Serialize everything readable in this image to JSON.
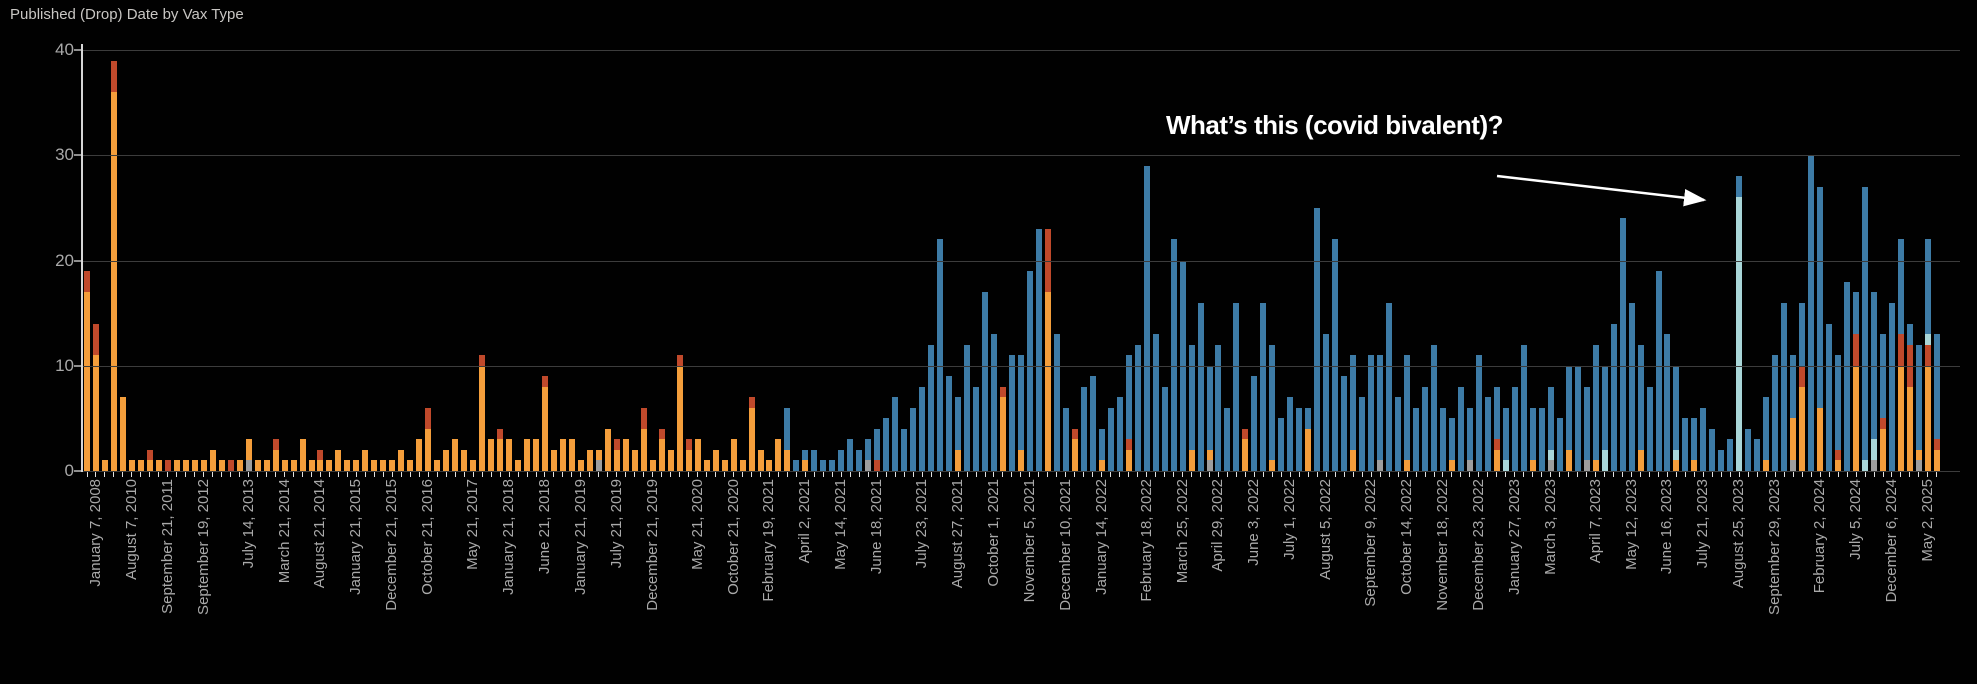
{
  "title": "Published (Drop) Date by Vax Type",
  "annotation": {
    "text": "What’s this (covid bivalent)?"
  },
  "colors": {
    "background": "#010101",
    "title_text": "#c8c6c3",
    "axis_text": "#a9a9a9",
    "gridline": "#3c3c3c",
    "axis_line": "#d6d6d6",
    "annotation_text": "#ffffff",
    "orange": "#f49e3b",
    "red_orange": "#c0492b",
    "blue": "#3d7ba6",
    "teal": "#a9d6d8",
    "gray": "#9e9e9e"
  },
  "y_axis": {
    "ticks": [
      0,
      10,
      20,
      30,
      40
    ]
  },
  "chart_data": {
    "type": "bar",
    "stacked": true,
    "title": "Published (Drop) Date by Vax Type",
    "xlabel": "",
    "ylabel": "",
    "ylim": [
      0,
      40
    ],
    "grid": true,
    "legend_position": "none",
    "stack_order": [
      "gray",
      "orange",
      "red_orange",
      "teal",
      "blue"
    ],
    "x_tick_labels": [
      "January 7, 2008",
      "August 7, 2010",
      "September 21, 2011",
      "September 19, 2012",
      "July 14, 2013",
      "March 21, 2014",
      "August 21, 2014",
      "January 21, 2015",
      "December 21, 2015",
      "October 21, 2016",
      "May 21, 2017",
      "January 21, 2018",
      "June 21, 2018",
      "January 21, 2019",
      "July 21, 2019",
      "December 21, 2019",
      "May 21, 2020",
      "October 21, 2020",
      "February 19, 2021",
      "April 2, 2021",
      "May 14, 2021",
      "June 18, 2021",
      "July 23, 2021",
      "August 27, 2021",
      "October 1, 2021",
      "November 5, 2021",
      "December 10, 2021",
      "January 14, 2022",
      "February 18, 2022",
      "March 25, 2022",
      "April 29, 2022",
      "June 3, 2022",
      "July 1, 2022",
      "August 5, 2022",
      "September 9, 2022",
      "October 14, 2022",
      "November 18, 2022",
      "December 23, 2022",
      "January 27, 2023",
      "March 3, 2023",
      "April 7, 2023",
      "May 12, 2023",
      "June 16, 2023",
      "July 21, 2023",
      "August 25, 2023",
      "September 29, 2023",
      "February 2, 2024",
      "July 5, 2024",
      "December 6, 2024",
      "May 2, 2025"
    ],
    "annotated_bar": {
      "x_label": "August 25, 2023",
      "teal_value": 26,
      "blue_value": 2
    },
    "bars": [
      [
        0,
        17,
        2,
        0,
        0
      ],
      [
        0,
        11,
        3,
        0,
        0
      ],
      [
        0,
        1,
        0,
        0,
        0
      ],
      [
        0,
        36,
        3,
        0,
        0
      ],
      [
        0,
        7,
        0,
        0,
        0
      ],
      [
        0,
        1,
        0,
        0,
        0
      ],
      [
        0,
        1,
        0,
        0,
        0
      ],
      [
        0,
        1,
        1,
        0,
        0
      ],
      [
        0,
        1,
        0,
        0,
        0
      ],
      [
        0,
        0,
        1,
        0,
        0
      ],
      [
        0,
        1,
        0,
        0,
        0
      ],
      [
        0,
        1,
        0,
        0,
        0
      ],
      [
        0,
        1,
        0,
        0,
        0
      ],
      [
        0,
        1,
        0,
        0,
        0
      ],
      [
        0,
        2,
        0,
        0,
        0
      ],
      [
        0,
        1,
        0,
        0,
        0
      ],
      [
        0,
        0,
        1,
        0,
        0
      ],
      [
        0,
        1,
        0,
        0,
        0
      ],
      [
        1,
        2,
        0,
        0,
        0
      ],
      [
        0,
        1,
        0,
        0,
        0
      ],
      [
        0,
        1,
        0,
        0,
        0
      ],
      [
        0,
        2,
        1,
        0,
        0
      ],
      [
        0,
        1,
        0,
        0,
        0
      ],
      [
        0,
        1,
        0,
        0,
        0
      ],
      [
        0,
        3,
        0,
        0,
        0
      ],
      [
        0,
        1,
        0,
        0,
        0
      ],
      [
        0,
        1,
        1,
        0,
        0
      ],
      [
        0,
        1,
        0,
        0,
        0
      ],
      [
        0,
        2,
        0,
        0,
        0
      ],
      [
        0,
        1,
        0,
        0,
        0
      ],
      [
        0,
        1,
        0,
        0,
        0
      ],
      [
        0,
        2,
        0,
        0,
        0
      ],
      [
        0,
        1,
        0,
        0,
        0
      ],
      [
        0,
        1,
        0,
        0,
        0
      ],
      [
        0,
        1,
        0,
        0,
        0
      ],
      [
        0,
        2,
        0,
        0,
        0
      ],
      [
        0,
        1,
        0,
        0,
        0
      ],
      [
        0,
        3,
        0,
        0,
        0
      ],
      [
        0,
        4,
        2,
        0,
        0
      ],
      [
        0,
        1,
        0,
        0,
        0
      ],
      [
        0,
        2,
        0,
        0,
        0
      ],
      [
        0,
        3,
        0,
        0,
        0
      ],
      [
        0,
        2,
        0,
        0,
        0
      ],
      [
        0,
        1,
        0,
        0,
        0
      ],
      [
        0,
        10,
        1,
        0,
        0
      ],
      [
        0,
        3,
        0,
        0,
        0
      ],
      [
        0,
        3,
        1,
        0,
        0
      ],
      [
        0,
        3,
        0,
        0,
        0
      ],
      [
        0,
        1,
        0,
        0,
        0
      ],
      [
        0,
        3,
        0,
        0,
        0
      ],
      [
        0,
        3,
        0,
        0,
        0
      ],
      [
        0,
        8,
        1,
        0,
        0
      ],
      [
        0,
        2,
        0,
        0,
        0
      ],
      [
        0,
        3,
        0,
        0,
        0
      ],
      [
        0,
        3,
        0,
        0,
        0
      ],
      [
        0,
        1,
        0,
        0,
        0
      ],
      [
        0,
        2,
        0,
        0,
        0
      ],
      [
        1,
        1,
        0,
        0,
        0
      ],
      [
        0,
        4,
        0,
        0,
        0
      ],
      [
        0,
        2,
        1,
        0,
        0
      ],
      [
        0,
        3,
        0,
        0,
        0
      ],
      [
        0,
        2,
        0,
        0,
        0
      ],
      [
        0,
        4,
        2,
        0,
        0
      ],
      [
        0,
        1,
        0,
        0,
        0
      ],
      [
        0,
        3,
        1,
        0,
        0
      ],
      [
        0,
        2,
        0,
        0,
        0
      ],
      [
        0,
        10,
        1,
        0,
        0
      ],
      [
        0,
        2,
        1,
        0,
        0
      ],
      [
        0,
        3,
        0,
        0,
        0
      ],
      [
        0,
        1,
        0,
        0,
        0
      ],
      [
        0,
        2,
        0,
        0,
        0
      ],
      [
        0,
        1,
        0,
        0,
        0
      ],
      [
        0,
        3,
        0,
        0,
        0
      ],
      [
        0,
        1,
        0,
        0,
        0
      ],
      [
        0,
        6,
        1,
        0,
        0
      ],
      [
        0,
        2,
        0,
        0,
        0
      ],
      [
        0,
        1,
        0,
        0,
        0
      ],
      [
        0,
        3,
        0,
        0,
        0
      ],
      [
        0,
        2,
        0,
        0,
        4
      ],
      [
        0,
        0,
        0,
        0,
        1
      ],
      [
        0,
        1,
        0,
        0,
        1
      ],
      [
        0,
        0,
        0,
        0,
        2
      ],
      [
        0,
        0,
        0,
        0,
        1
      ],
      [
        0,
        0,
        0,
        0,
        1
      ],
      [
        0,
        0,
        0,
        0,
        2
      ],
      [
        0,
        0,
        0,
        0,
        3
      ],
      [
        0,
        0,
        0,
        0,
        2
      ],
      [
        1,
        0,
        0,
        0,
        2
      ],
      [
        0,
        0,
        1,
        0,
        3
      ],
      [
        0,
        0,
        0,
        0,
        5
      ],
      [
        0,
        0,
        0,
        0,
        7
      ],
      [
        0,
        0,
        0,
        0,
        4
      ],
      [
        0,
        0,
        0,
        0,
        6
      ],
      [
        0,
        0,
        0,
        0,
        8
      ],
      [
        0,
        0,
        0,
        0,
        12
      ],
      [
        0,
        0,
        0,
        0,
        22
      ],
      [
        0,
        0,
        0,
        0,
        9
      ],
      [
        0,
        2,
        0,
        0,
        5
      ],
      [
        0,
        0,
        0,
        0,
        12
      ],
      [
        0,
        0,
        0,
        0,
        8
      ],
      [
        0,
        0,
        0,
        0,
        17
      ],
      [
        0,
        0,
        0,
        0,
        13
      ],
      [
        0,
        7,
        1,
        0,
        0
      ],
      [
        0,
        0,
        0,
        0,
        11
      ],
      [
        0,
        2,
        0,
        0,
        9
      ],
      [
        0,
        0,
        0,
        0,
        19
      ],
      [
        0,
        0,
        0,
        0,
        23
      ],
      [
        0,
        17,
        6,
        0,
        0
      ],
      [
        0,
        0,
        0,
        0,
        13
      ],
      [
        0,
        0,
        0,
        0,
        6
      ],
      [
        0,
        3,
        1,
        0,
        0
      ],
      [
        0,
        0,
        0,
        0,
        8
      ],
      [
        0,
        0,
        0,
        0,
        9
      ],
      [
        0,
        1,
        0,
        0,
        3
      ],
      [
        0,
        0,
        0,
        0,
        6
      ],
      [
        0,
        0,
        0,
        0,
        7
      ],
      [
        0,
        2,
        1,
        0,
        8
      ],
      [
        0,
        0,
        0,
        0,
        12
      ],
      [
        0,
        0,
        0,
        0,
        29
      ],
      [
        0,
        0,
        0,
        0,
        13
      ],
      [
        0,
        0,
        0,
        0,
        8
      ],
      [
        0,
        0,
        0,
        0,
        22
      ],
      [
        0,
        0,
        0,
        0,
        20
      ],
      [
        0,
        2,
        0,
        0,
        10
      ],
      [
        0,
        0,
        0,
        0,
        16
      ],
      [
        1,
        1,
        0,
        0,
        8
      ],
      [
        0,
        0,
        0,
        0,
        12
      ],
      [
        0,
        0,
        0,
        0,
        6
      ],
      [
        0,
        0,
        0,
        0,
        16
      ],
      [
        0,
        3,
        1,
        0,
        0
      ],
      [
        0,
        0,
        0,
        0,
        9
      ],
      [
        0,
        0,
        0,
        0,
        16
      ],
      [
        0,
        1,
        0,
        0,
        11
      ],
      [
        0,
        0,
        0,
        0,
        5
      ],
      [
        0,
        0,
        0,
        0,
        7
      ],
      [
        0,
        0,
        0,
        0,
        6
      ],
      [
        0,
        4,
        0,
        0,
        2
      ],
      [
        0,
        0,
        0,
        0,
        25
      ],
      [
        0,
        0,
        0,
        0,
        13
      ],
      [
        0,
        0,
        0,
        0,
        22
      ],
      [
        0,
        0,
        0,
        0,
        9
      ],
      [
        0,
        2,
        0,
        0,
        9
      ],
      [
        0,
        0,
        0,
        0,
        7
      ],
      [
        0,
        0,
        0,
        0,
        11
      ],
      [
        1,
        0,
        0,
        0,
        10
      ],
      [
        0,
        0,
        0,
        0,
        16
      ],
      [
        0,
        0,
        0,
        0,
        7
      ],
      [
        0,
        1,
        0,
        0,
        10
      ],
      [
        0,
        0,
        0,
        0,
        6
      ],
      [
        0,
        0,
        0,
        0,
        8
      ],
      [
        0,
        0,
        0,
        0,
        12
      ],
      [
        0,
        0,
        0,
        0,
        6
      ],
      [
        0,
        1,
        0,
        0,
        4
      ],
      [
        0,
        0,
        0,
        0,
        8
      ],
      [
        1,
        0,
        0,
        0,
        5
      ],
      [
        0,
        0,
        0,
        0,
        11
      ],
      [
        0,
        0,
        0,
        0,
        7
      ],
      [
        0,
        2,
        1,
        0,
        5
      ],
      [
        0,
        0,
        0,
        1,
        5
      ],
      [
        0,
        0,
        0,
        0,
        8
      ],
      [
        0,
        0,
        0,
        0,
        12
      ],
      [
        0,
        1,
        0,
        0,
        5
      ],
      [
        0,
        0,
        0,
        0,
        6
      ],
      [
        1,
        0,
        0,
        1,
        6
      ],
      [
        0,
        0,
        0,
        0,
        5
      ],
      [
        0,
        2,
        0,
        0,
        8
      ],
      [
        0,
        0,
        0,
        0,
        10
      ],
      [
        1,
        0,
        0,
        0,
        7
      ],
      [
        0,
        1,
        0,
        0,
        11
      ],
      [
        0,
        0,
        0,
        2,
        8
      ],
      [
        0,
        0,
        0,
        0,
        14
      ],
      [
        0,
        0,
        0,
        0,
        24
      ],
      [
        0,
        0,
        0,
        0,
        16
      ],
      [
        0,
        2,
        0,
        0,
        10
      ],
      [
        0,
        0,
        0,
        0,
        8
      ],
      [
        0,
        0,
        0,
        0,
        19
      ],
      [
        0,
        0,
        0,
        0,
        13
      ],
      [
        0,
        1,
        0,
        1,
        8
      ],
      [
        0,
        0,
        0,
        0,
        5
      ],
      [
        0,
        1,
        0,
        0,
        4
      ],
      [
        0,
        0,
        0,
        0,
        6
      ],
      [
        0,
        0,
        0,
        0,
        4
      ],
      [
        0,
        0,
        0,
        0,
        2
      ],
      [
        0,
        0,
        0,
        0,
        3
      ],
      [
        0,
        0,
        0,
        26,
        2
      ],
      [
        0,
        0,
        0,
        0,
        4
      ],
      [
        0,
        0,
        0,
        0,
        3
      ],
      [
        0,
        1,
        0,
        0,
        6
      ],
      [
        0,
        0,
        0,
        0,
        11
      ],
      [
        0,
        0,
        0,
        0,
        16
      ],
      [
        1,
        4,
        0,
        0,
        6
      ],
      [
        0,
        8,
        2,
        0,
        6
      ],
      [
        0,
        0,
        0,
        0,
        30
      ],
      [
        0,
        6,
        0,
        0,
        21
      ],
      [
        0,
        0,
        0,
        0,
        14
      ],
      [
        0,
        1,
        1,
        0,
        9
      ],
      [
        0,
        0,
        0,
        0,
        18
      ],
      [
        0,
        10,
        3,
        0,
        4
      ],
      [
        0,
        0,
        0,
        1,
        26
      ],
      [
        1,
        0,
        0,
        2,
        14
      ],
      [
        0,
        4,
        1,
        0,
        8
      ],
      [
        0,
        0,
        0,
        0,
        16
      ],
      [
        0,
        10,
        3,
        0,
        9
      ],
      [
        0,
        8,
        4,
        0,
        2
      ],
      [
        1,
        1,
        0,
        0,
        10
      ],
      [
        0,
        10,
        2,
        1,
        9
      ],
      [
        0,
        2,
        1,
        0,
        10
      ]
    ]
  }
}
